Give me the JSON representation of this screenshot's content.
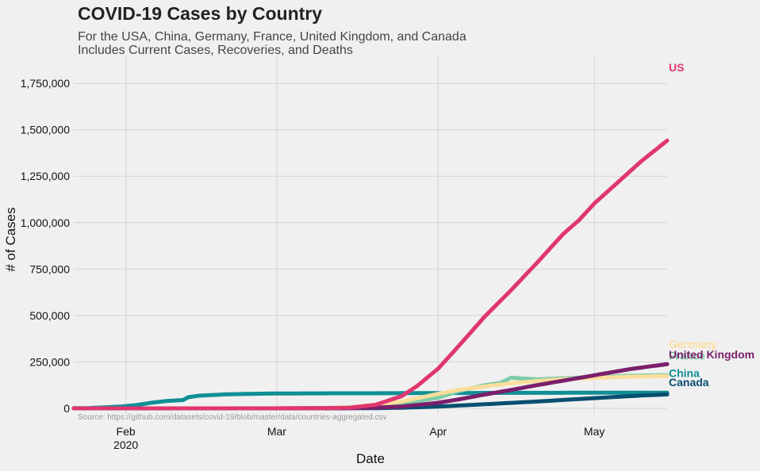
{
  "chart_data": {
    "type": "line",
    "title": "COVID-19 Cases by Country",
    "subtitle_lines": [
      "For the USA, China, Germany, France, United Kingdom, and Canada",
      "Includes Current Cases, Recoveries, and Deaths"
    ],
    "xlabel": "Date",
    "ylabel": "# of Cases",
    "source": "Source: https://github.com/datasets/covid-19/blob/master/data/countries-aggregated.csv",
    "x_range": [
      "2020-01-22",
      "2020-05-15"
    ],
    "ylim": [
      -30000,
      1900000
    ],
    "x_ticks": [
      {
        "date": "2020-02-01",
        "label": "Feb",
        "sublabel": "2020"
      },
      {
        "date": "2020-03-01",
        "label": "Mar",
        "sublabel": ""
      },
      {
        "date": "2020-04-01",
        "label": "Apr",
        "sublabel": ""
      },
      {
        "date": "2020-05-01",
        "label": "May",
        "sublabel": ""
      }
    ],
    "y_ticks": [
      {
        "value": 0,
        "label": "0"
      },
      {
        "value": 250000,
        "label": "250,000"
      },
      {
        "value": 500000,
        "label": "500,000"
      },
      {
        "value": 750000,
        "label": "750,000"
      },
      {
        "value": 1000000,
        "label": "1,000,000"
      },
      {
        "value": 1250000,
        "label": "1,250,000"
      },
      {
        "value": 1500000,
        "label": "1,500,000"
      },
      {
        "value": 1750000,
        "label": "1,750,000"
      }
    ],
    "grid": true,
    "series": [
      {
        "name": "China",
        "color": "#0f8f96",
        "label_value": 190000,
        "points": [
          [
            "2020-01-22",
            550
          ],
          [
            "2020-01-25",
            1400
          ],
          [
            "2020-01-28",
            5500
          ],
          [
            "2020-01-31",
            9800
          ],
          [
            "2020-02-03",
            17200
          ],
          [
            "2020-02-06",
            30600
          ],
          [
            "2020-02-09",
            40200
          ],
          [
            "2020-02-12",
            44700
          ],
          [
            "2020-02-13",
            59900
          ],
          [
            "2020-02-15",
            68000
          ],
          [
            "2020-02-20",
            75000
          ],
          [
            "2020-02-25",
            78000
          ],
          [
            "2020-03-01",
            80000
          ],
          [
            "2020-03-10",
            80800
          ],
          [
            "2020-03-20",
            81200
          ],
          [
            "2020-04-01",
            82300
          ],
          [
            "2020-04-17",
            83700
          ],
          [
            "2020-05-15",
            84000
          ]
        ]
      },
      {
        "name": "Canada",
        "color": "#084f70",
        "label_value": 140000,
        "points": [
          [
            "2020-01-22",
            0
          ],
          [
            "2020-03-10",
            80
          ],
          [
            "2020-03-20",
            1000
          ],
          [
            "2020-03-25",
            3300
          ],
          [
            "2020-04-01",
            9500
          ],
          [
            "2020-04-10",
            22000
          ],
          [
            "2020-04-20",
            36800
          ],
          [
            "2020-05-01",
            55000
          ],
          [
            "2020-05-10",
            69000
          ],
          [
            "2020-05-15",
            75000
          ]
        ]
      },
      {
        "name": "France",
        "color": "#7ecba7",
        "label_value": 283000,
        "points": [
          [
            "2020-01-22",
            0
          ],
          [
            "2020-03-01",
            130
          ],
          [
            "2020-03-10",
            1800
          ],
          [
            "2020-03-15",
            5400
          ],
          [
            "2020-03-20",
            12600
          ],
          [
            "2020-03-25",
            25600
          ],
          [
            "2020-04-01",
            57000
          ],
          [
            "2020-04-05",
            93000
          ],
          [
            "2020-04-10",
            125000
          ],
          [
            "2020-04-12",
            133000
          ],
          [
            "2020-04-13",
            137000
          ],
          [
            "2020-04-15",
            165000
          ],
          [
            "2020-04-20",
            156000
          ],
          [
            "2020-04-25",
            162000
          ],
          [
            "2020-05-01",
            168000
          ],
          [
            "2020-05-08",
            176000
          ],
          [
            "2020-05-15",
            179000
          ]
        ]
      },
      {
        "name": "Germany",
        "color": "#fcde9c",
        "label_value": 345000,
        "points": [
          [
            "2020-01-22",
            0
          ],
          [
            "2020-03-01",
            130
          ],
          [
            "2020-03-10",
            1450
          ],
          [
            "2020-03-15",
            5800
          ],
          [
            "2020-03-20",
            19800
          ],
          [
            "2020-03-25",
            37300
          ],
          [
            "2020-04-01",
            77900
          ],
          [
            "2020-04-05",
            100100
          ],
          [
            "2020-04-10",
            118200
          ],
          [
            "2020-04-15",
            134700
          ],
          [
            "2020-04-20",
            147000
          ],
          [
            "2020-04-25",
            156500
          ],
          [
            "2020-05-01",
            164000
          ],
          [
            "2020-05-08",
            170600
          ],
          [
            "2020-05-15",
            174000
          ]
        ]
      },
      {
        "name": "United Kingdom",
        "color": "#7a1e6b",
        "label_value": 290000,
        "points": [
          [
            "2020-01-22",
            0
          ],
          [
            "2020-03-01",
            36
          ],
          [
            "2020-03-10",
            380
          ],
          [
            "2020-03-15",
            1140
          ],
          [
            "2020-03-20",
            4000
          ],
          [
            "2020-03-25",
            9600
          ],
          [
            "2020-04-01",
            29800
          ],
          [
            "2020-04-05",
            48400
          ],
          [
            "2020-04-10",
            74600
          ],
          [
            "2020-04-15",
            99000
          ],
          [
            "2020-04-20",
            125000
          ],
          [
            "2020-04-25",
            149000
          ],
          [
            "2020-05-01",
            178000
          ],
          [
            "2020-05-08",
            212000
          ],
          [
            "2020-05-15",
            238000
          ]
        ]
      },
      {
        "name": "US",
        "color": "#e0366e",
        "label_value": 1835000,
        "points": [
          [
            "2020-01-22",
            1
          ],
          [
            "2020-03-01",
            75
          ],
          [
            "2020-03-10",
            960
          ],
          [
            "2020-03-15",
            3500
          ],
          [
            "2020-03-20",
            19100
          ],
          [
            "2020-03-25",
            65800
          ],
          [
            "2020-03-28",
            121000
          ],
          [
            "2020-04-01",
            214000
          ],
          [
            "2020-04-05",
            337000
          ],
          [
            "2020-04-10",
            496000
          ],
          [
            "2020-04-15",
            636000
          ],
          [
            "2020-04-20",
            784000
          ],
          [
            "2020-04-25",
            938000
          ],
          [
            "2020-04-28",
            1012000
          ],
          [
            "2020-05-01",
            1103000
          ],
          [
            "2020-05-05",
            1204000
          ],
          [
            "2020-05-10",
            1330000
          ],
          [
            "2020-05-15",
            1442000
          ]
        ]
      }
    ]
  }
}
